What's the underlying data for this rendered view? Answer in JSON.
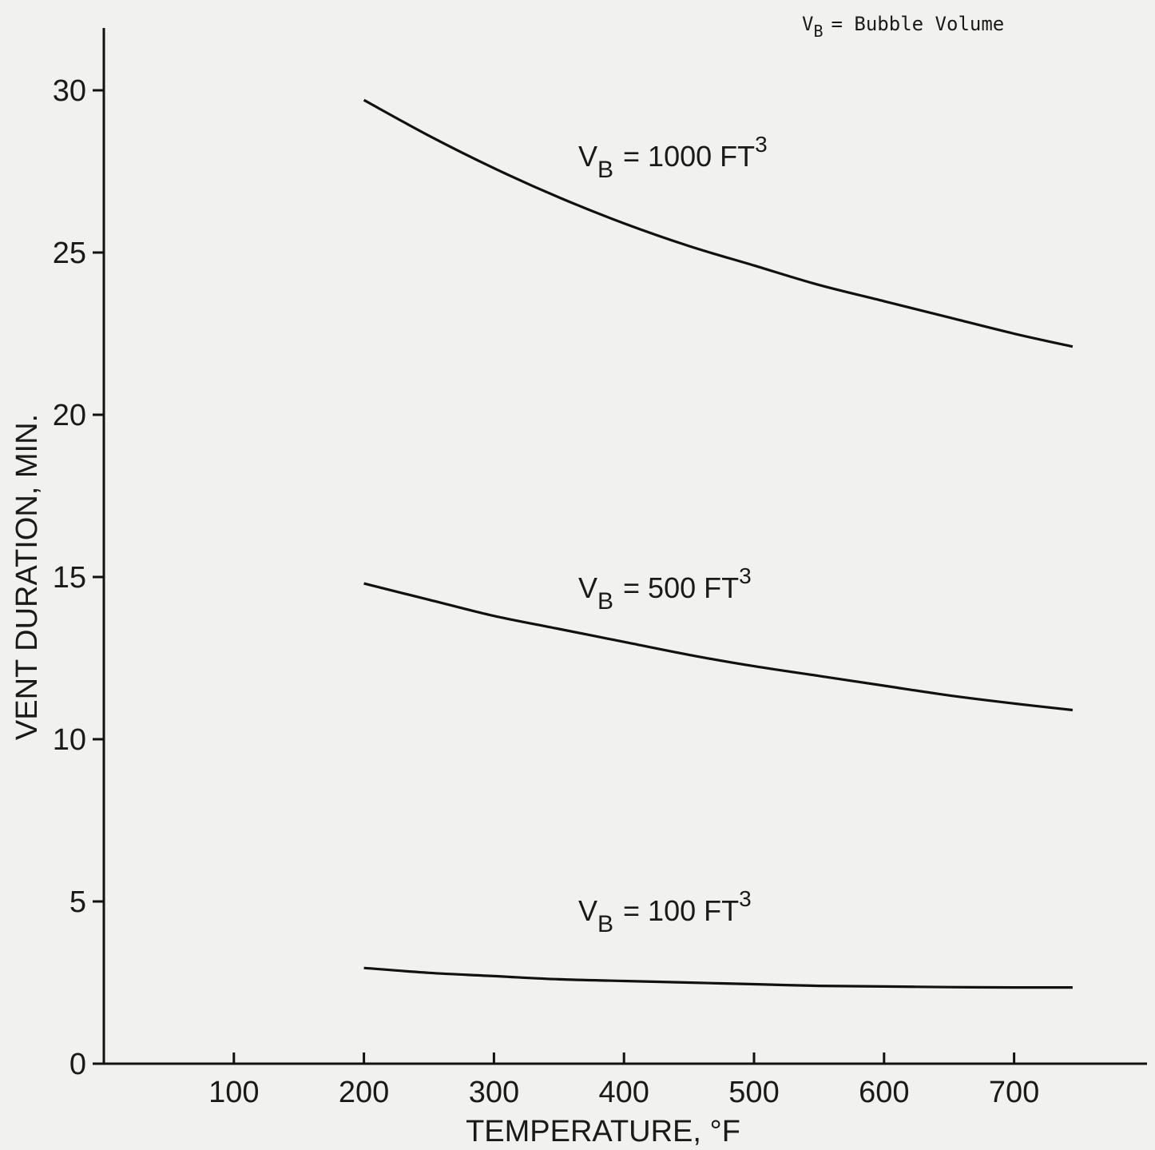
{
  "chart_data": {
    "type": "line",
    "xlabel": "TEMPERATURE, °F",
    "ylabel": "VENT DURATION, MIN.",
    "xlim": [
      0,
      800
    ],
    "ylim": [
      0,
      32
    ],
    "x_ticks": [
      100,
      200,
      300,
      400,
      500,
      600,
      700
    ],
    "y_ticks": [
      0,
      5,
      10,
      15,
      20,
      25,
      30
    ],
    "grid": false,
    "legend": {
      "position": "top-right",
      "symbol": "V",
      "subscript": "B",
      "text": "= Bubble Volume"
    },
    "series": [
      {
        "name": "VB = 1000 FT3",
        "label_prefix": "V",
        "label_sub": "B",
        "label_text": "= 1000 FT",
        "label_sup": "3",
        "x": [
          200,
          250,
          300,
          350,
          400,
          450,
          500,
          550,
          600,
          650,
          700,
          745
        ],
        "y": [
          29.7,
          28.6,
          27.6,
          26.7,
          25.9,
          25.2,
          24.6,
          24.0,
          23.5,
          23.0,
          22.5,
          22.1
        ]
      },
      {
        "name": "VB = 500 FT3",
        "label_prefix": "V",
        "label_sub": "B",
        "label_text": "= 500 FT",
        "label_sup": "3",
        "x": [
          200,
          250,
          300,
          350,
          400,
          450,
          500,
          550,
          600,
          650,
          700,
          745
        ],
        "y": [
          14.8,
          14.3,
          13.8,
          13.4,
          13.0,
          12.6,
          12.25,
          11.95,
          11.65,
          11.35,
          11.1,
          10.9
        ]
      },
      {
        "name": "VB = 100 FT3",
        "label_prefix": "V",
        "label_sub": "B",
        "label_text": "= 100 FT",
        "label_sup": "3",
        "x": [
          200,
          250,
          300,
          350,
          400,
          450,
          500,
          550,
          600,
          650,
          700,
          745
        ],
        "y": [
          2.95,
          2.8,
          2.7,
          2.6,
          2.55,
          2.5,
          2.45,
          2.4,
          2.38,
          2.36,
          2.35,
          2.35
        ]
      }
    ]
  }
}
